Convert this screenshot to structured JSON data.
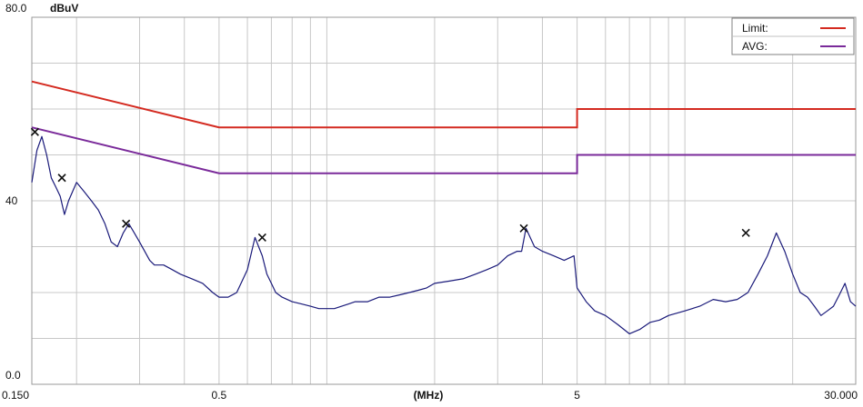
{
  "chart_data": {
    "type": "line",
    "ylabel": "dBuV",
    "xlabel": "(MHz)",
    "x_scale": "log",
    "xlim": [
      0.15,
      30.0
    ],
    "ylim": [
      0,
      80
    ],
    "y_tick_labels": [
      "80.0",
      "40",
      "0.0"
    ],
    "y_tick_values": [
      80,
      40,
      0
    ],
    "x_tick_labels": [
      "0.150",
      "0.5",
      "5",
      "30.000"
    ],
    "x_tick_values": [
      0.15,
      0.5,
      5,
      30
    ],
    "grid": true,
    "legend_position": "top-right",
    "legend": [
      {
        "label": "Limit:",
        "color": "#d42a20"
      },
      {
        "label": "AVG:",
        "color": "#7a2a9a"
      }
    ],
    "limit_lines": [
      {
        "name": "Limit",
        "color": "#d42a20",
        "x": [
          0.15,
          0.5,
          5,
          5,
          30
        ],
        "y": [
          66,
          56,
          56,
          60,
          60
        ]
      },
      {
        "name": "AVG",
        "color": "#7a2a9a",
        "x": [
          0.15,
          0.5,
          5,
          5,
          30
        ],
        "y": [
          56,
          46,
          46,
          50,
          50
        ]
      }
    ],
    "series": [
      {
        "color": "#1a1a7a",
        "x": [
          0.15,
          0.155,
          0.16,
          0.165,
          0.17,
          0.175,
          0.18,
          0.185,
          0.19,
          0.2,
          0.21,
          0.22,
          0.23,
          0.24,
          0.25,
          0.26,
          0.27,
          0.28,
          0.29,
          0.3,
          0.31,
          0.32,
          0.33,
          0.35,
          0.37,
          0.39,
          0.42,
          0.45,
          0.48,
          0.5,
          0.53,
          0.56,
          0.6,
          0.63,
          0.66,
          0.68,
          0.7,
          0.72,
          0.75,
          0.8,
          0.85,
          0.9,
          0.95,
          1.0,
          1.05,
          1.1,
          1.2,
          1.3,
          1.4,
          1.5,
          1.6,
          1.7,
          1.8,
          1.9,
          2.0,
          2.2,
          2.4,
          2.6,
          2.8,
          3.0,
          3.2,
          3.4,
          3.5,
          3.6,
          3.8,
          4.0,
          4.3,
          4.6,
          4.9,
          5.0,
          5.3,
          5.6,
          6.0,
          6.5,
          7.0,
          7.5,
          8.0,
          8.5,
          9.0,
          10.0,
          11.0,
          12.0,
          13.0,
          14.0,
          15.0,
          16.0,
          17.0,
          18.0,
          19.0,
          20.0,
          21.0,
          22.0,
          23.0,
          24.0,
          25.0,
          26.0,
          27.0,
          28.0,
          29.0,
          30.0
        ],
        "y": [
          44,
          51,
          54,
          50,
          45,
          43,
          41,
          37,
          40,
          44,
          42,
          40,
          38,
          35,
          31,
          30,
          33,
          35,
          33,
          31,
          29,
          27,
          26,
          26,
          25,
          24,
          23,
          22,
          20,
          19,
          19,
          20,
          25,
          32,
          28,
          24,
          22,
          20,
          19,
          18,
          17.5,
          17,
          16.5,
          16.5,
          16.5,
          17,
          18,
          18,
          19,
          19,
          19.5,
          20,
          20.5,
          21,
          22,
          22.5,
          23,
          24,
          25,
          26,
          28,
          29,
          29,
          34,
          30,
          29,
          28,
          27,
          28,
          21,
          18,
          16,
          15,
          13,
          11,
          12,
          13.5,
          14,
          15,
          16,
          17,
          18.5,
          18,
          18.5,
          20,
          24,
          28,
          33,
          29,
          24,
          20,
          19,
          17,
          15,
          16,
          17,
          19.5,
          22,
          18,
          17
        ]
      }
    ],
    "peak_markers": [
      {
        "x": 0.153,
        "y": 55
      },
      {
        "x": 0.182,
        "y": 45
      },
      {
        "x": 0.275,
        "y": 35
      },
      {
        "x": 0.66,
        "y": 32
      },
      {
        "x": 3.55,
        "y": 34
      },
      {
        "x": 14.8,
        "y": 33
      }
    ]
  }
}
